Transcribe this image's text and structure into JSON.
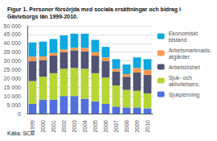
{
  "chart_data": {
    "type": "bar",
    "title": "Figur 1. Personer försörjda med sociala ersättningar och bidrag i\nGävleborgs län 1999-2010.",
    "annotations": [
      "Källa: SCB"
    ],
    "categories": [
      "1999",
      "2000",
      "2001",
      "2002",
      "2003",
      "2004",
      "2005",
      "2006",
      "2007",
      "2008",
      "2009",
      "2010"
    ],
    "series": [
      {
        "name": "Sjukpenning",
        "values": [
          5500,
          8000,
          8000,
          10000,
          10000,
          8500,
          7000,
          5500,
          4000,
          3500,
          3500,
          3000
        ]
      },
      {
        "name": "Sjuk- och\naktivitetsers.",
        "values": [
          13000,
          13000,
          15000,
          15500,
          16000,
          17000,
          16000,
          15000,
          12000,
          10000,
          9500,
          8500
        ]
      },
      {
        "name": "Arbetslöshet",
        "values": [
          11500,
          9500,
          10000,
          9500,
          10000,
          10000,
          10000,
          9500,
          8000,
          7500,
          10500,
          10500
        ]
      },
      {
        "name": "Arbetsmarknads-\natgärder",
        "values": [
          2500,
          2000,
          1500,
          1500,
          1500,
          2000,
          2000,
          2000,
          1500,
          1500,
          2500,
          3000
        ]
      },
      {
        "name": "Ekonomiskt\nbistand",
        "values": [
          8000,
          8500,
          8000,
          8000,
          8000,
          8000,
          7000,
          6000,
          5500,
          5500,
          6000,
          6000
        ]
      }
    ],
    "stacked": true,
    "ylim": [
      0,
      50000
    ],
    "yticks": [
      0,
      {
        "value": 5000,
        "label": "5 000"
      },
      {
        "value": 10000,
        "label": "10 000"
      },
      {
        "value": 15000,
        "label": "15 000"
      },
      {
        "value": 20000,
        "label": "20 000"
      },
      {
        "value": 25000,
        "label": "25 000"
      },
      {
        "value": 30000,
        "label": "30 000"
      },
      {
        "value": 35000,
        "label": "35 000"
      },
      {
        "value": 40000,
        "label": "40 000"
      },
      {
        "value": 45000,
        "label": "45 000"
      },
      {
        "value": 50000,
        "label": "50 000"
      }
    ],
    "grid": true,
    "legend": "right"
  }
}
